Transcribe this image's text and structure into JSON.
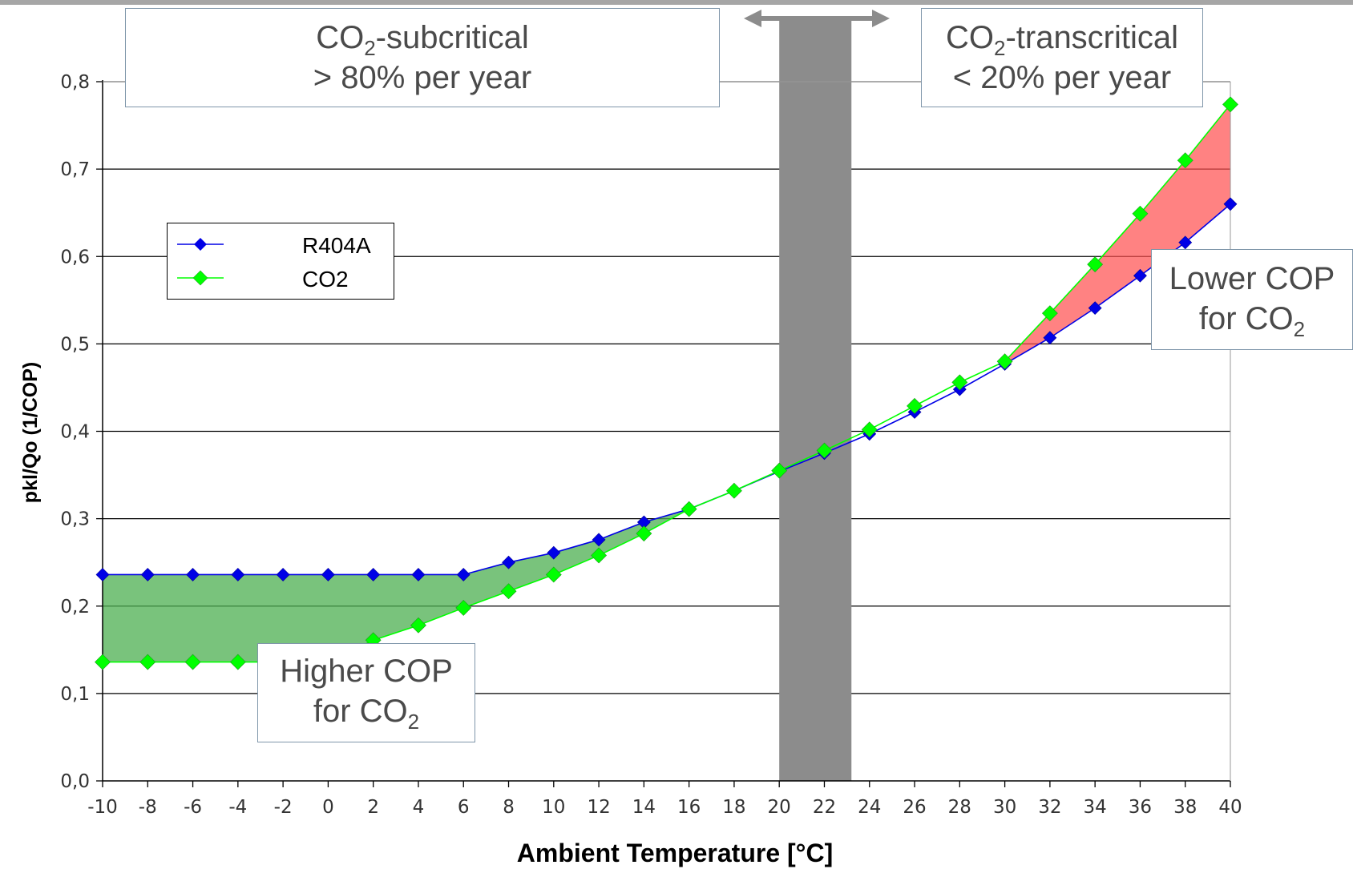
{
  "chart_data": {
    "type": "line",
    "xlabel": "Ambient Temperature [°C]",
    "ylabel": "pkl/Qo (1/COP)",
    "xlim": [
      -10,
      40
    ],
    "ylim": [
      0,
      0.8
    ],
    "x": [
      -10,
      -8,
      -6,
      -4,
      -2,
      0,
      2,
      4,
      6,
      8,
      10,
      12,
      14,
      16,
      18,
      20,
      22,
      24,
      26,
      28,
      30,
      32,
      34,
      36,
      38,
      40
    ],
    "x_tick_labels": [
      "-10",
      "-8",
      "-6",
      "-4",
      "-2",
      "0",
      "2",
      "4",
      "6",
      "8",
      "10",
      "12",
      "14",
      "16",
      "18",
      "20",
      "22",
      "24",
      "26",
      "28",
      "30",
      "32",
      "34",
      "36",
      "38",
      "40"
    ],
    "y_tick_values": [
      0,
      0.1,
      0.2,
      0.3,
      0.4,
      0.5,
      0.6,
      0.7,
      0.8
    ],
    "y_tick_labels": [
      "0,0",
      "0,1",
      "0,2",
      "0,3",
      "0,4",
      "0,5",
      "0,6",
      "0,7",
      "0,8"
    ],
    "grid": "horizontal",
    "legend_position": "left",
    "series": [
      {
        "name": "R404A",
        "color": "#0000e6",
        "marker": "diamond",
        "values": [
          0.236,
          0.236,
          0.236,
          0.236,
          0.236,
          0.236,
          0.236,
          0.236,
          0.236,
          0.25,
          0.261,
          0.276,
          0.296,
          0.311,
          0.332,
          0.354,
          0.375,
          0.397,
          0.422,
          0.448,
          0.477,
          0.507,
          0.541,
          0.578,
          0.616,
          0.66
        ]
      },
      {
        "name": "CO2",
        "color": "#00ff00",
        "marker": "diamond",
        "values": [
          0.136,
          0.136,
          0.136,
          0.136,
          0.136,
          0.136,
          0.161,
          0.178,
          0.198,
          0.217,
          0.236,
          0.258,
          0.283,
          0.311,
          0.332,
          0.355,
          0.378,
          0.402,
          0.429,
          0.456,
          0.48,
          0.535,
          0.591,
          0.649,
          0.71,
          0.774
        ]
      }
    ],
    "shaded_band": {
      "x_range": [
        20,
        23.2
      ],
      "color": "#8c8c8c"
    },
    "fill_colors": {
      "co2_better": "#4caf50",
      "co2_worse": "#ff4d4d"
    },
    "annotations": {
      "subcritical": {
        "line1": "CO",
        "sub": "2",
        "line1_rest": "-subcritical",
        "line2": "> 80% per year"
      },
      "transcritical": {
        "line1": "CO",
        "sub": "2",
        "line1_rest": "-transcritical",
        "line2": "< 20% per year"
      },
      "higher_cop": {
        "line1": "Higher COP",
        "line2": "for CO",
        "sub": "2"
      },
      "lower_cop": {
        "line1": "Lower COP",
        "line2": "for CO",
        "sub": "2"
      }
    }
  }
}
